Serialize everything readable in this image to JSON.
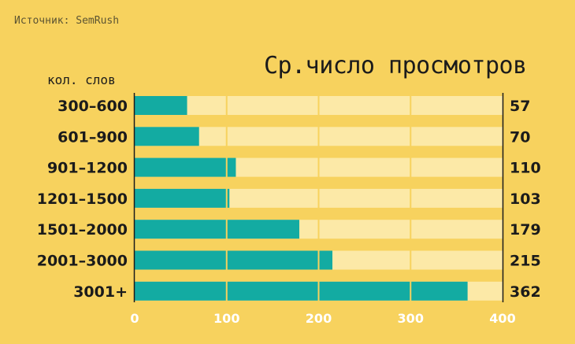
{
  "source": "Источник: SemRush",
  "colors": {
    "background": "#F7D25E",
    "bar": "#13ABA2",
    "track": "#FCE9A7",
    "grid": "#F7D25E",
    "text": "#1b1b1b",
    "tick_text": "#ffffff"
  },
  "chart_data": {
    "type": "bar",
    "orientation": "horizontal",
    "title": "Ср.число просмотров",
    "ylabel": "кол. слов",
    "xlabel": "",
    "categories": [
      "300–600",
      "601–900",
      "901–1200",
      "1201–1500",
      "1501–2000",
      "2001–3000",
      "3001+"
    ],
    "values": [
      57,
      70,
      110,
      103,
      179,
      215,
      362
    ],
    "value_labels": [
      "57",
      "70",
      "110",
      "103",
      "179",
      "215",
      "362"
    ],
    "xlim": [
      0,
      400
    ],
    "xticks": [
      "0",
      "100",
      "200",
      "300",
      "400"
    ],
    "grid": true,
    "legend": "none"
  }
}
